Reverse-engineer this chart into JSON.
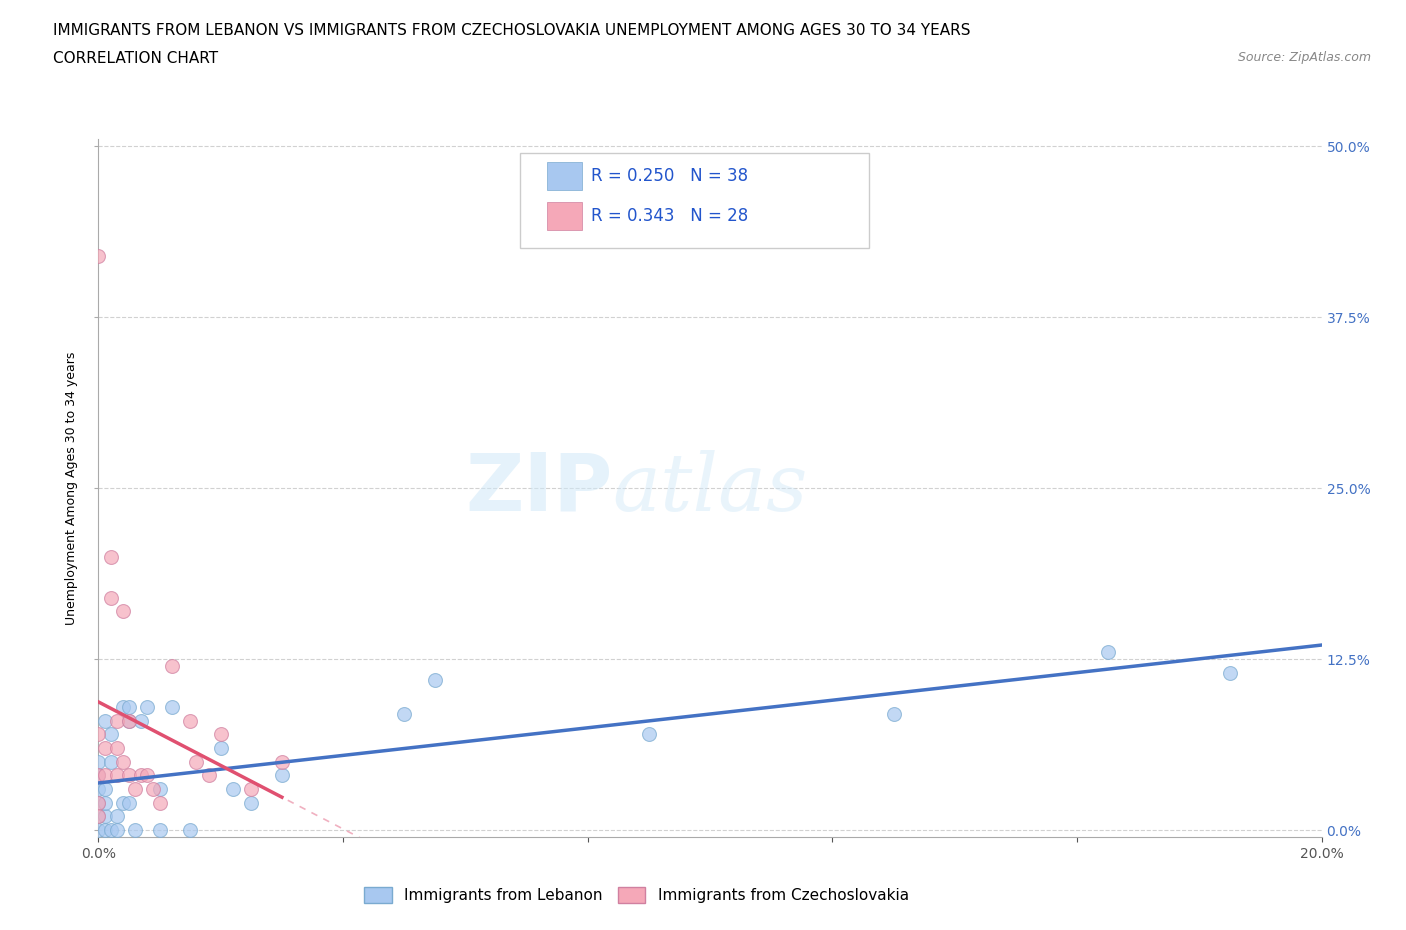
{
  "title_line1": "IMMIGRANTS FROM LEBANON VS IMMIGRANTS FROM CZECHOSLOVAKIA UNEMPLOYMENT AMONG AGES 30 TO 34 YEARS",
  "title_line2": "CORRELATION CHART",
  "source_text": "Source: ZipAtlas.com",
  "ylabel_label": "Unemployment Among Ages 30 to 34 years",
  "legend_bottom": [
    "Immigrants from Lebanon",
    "Immigrants from Czechoslovakia"
  ],
  "watermark_zip": "ZIP",
  "watermark_atlas": "atlas",
  "color_lebanon": "#a8c8f0",
  "color_czech": "#f5a8b8",
  "line_lebanon": "#4472c4",
  "line_czech": "#e05070",
  "line_czech_dash": "#f0b0c0",
  "background_color": "#ffffff",
  "grid_color": "#cccccc",
  "xlim": [
    0.0,
    0.2
  ],
  "ylim": [
    -0.005,
    0.505
  ],
  "lebanon_x": [
    0.0,
    0.0,
    0.0,
    0.0,
    0.0,
    0.0,
    0.001,
    0.001,
    0.001,
    0.001,
    0.001,
    0.002,
    0.002,
    0.002,
    0.003,
    0.003,
    0.004,
    0.004,
    0.005,
    0.005,
    0.005,
    0.006,
    0.007,
    0.008,
    0.01,
    0.01,
    0.012,
    0.015,
    0.02,
    0.022,
    0.025,
    0.03,
    0.05,
    0.055,
    0.09,
    0.13,
    0.165,
    0.185
  ],
  "lebanon_y": [
    0.0,
    0.01,
    0.02,
    0.03,
    0.04,
    0.05,
    0.0,
    0.01,
    0.02,
    0.03,
    0.08,
    0.0,
    0.05,
    0.07,
    0.0,
    0.01,
    0.02,
    0.09,
    0.02,
    0.08,
    0.09,
    0.0,
    0.08,
    0.09,
    0.0,
    0.03,
    0.09,
    0.0,
    0.06,
    0.03,
    0.02,
    0.04,
    0.085,
    0.11,
    0.07,
    0.085,
    0.13,
    0.115
  ],
  "czech_x": [
    0.0,
    0.0,
    0.0,
    0.0,
    0.0,
    0.001,
    0.001,
    0.002,
    0.002,
    0.003,
    0.003,
    0.003,
    0.004,
    0.004,
    0.005,
    0.005,
    0.006,
    0.007,
    0.008,
    0.009,
    0.01,
    0.012,
    0.015,
    0.016,
    0.018,
    0.02,
    0.025,
    0.03
  ],
  "czech_y": [
    0.42,
    0.07,
    0.04,
    0.02,
    0.01,
    0.06,
    0.04,
    0.2,
    0.17,
    0.08,
    0.06,
    0.04,
    0.16,
    0.05,
    0.08,
    0.04,
    0.03,
    0.04,
    0.04,
    0.03,
    0.02,
    0.12,
    0.08,
    0.05,
    0.04,
    0.07,
    0.03,
    0.05
  ],
  "title_fontsize": 11,
  "axis_label_fontsize": 9,
  "tick_fontsize": 10
}
